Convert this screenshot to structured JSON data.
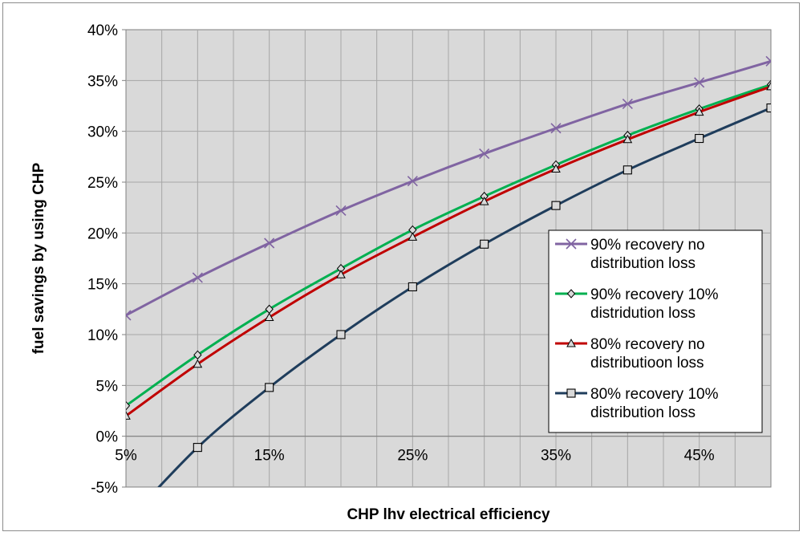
{
  "chart_data": {
    "type": "line",
    "xlabel": "CHP lhv electrical efficiency",
    "ylabel": "fuel savings by using CHP",
    "x_ticks": [
      "5%",
      "15%",
      "25%",
      "35%",
      "45%"
    ],
    "y_ticks": [
      "-5%",
      "0%",
      "5%",
      "10%",
      "15%",
      "20%",
      "25%",
      "30%",
      "35%",
      "40%"
    ],
    "xlim": [
      0.05,
      0.5
    ],
    "ylim": [
      -0.05,
      0.4
    ],
    "x": [
      0.05,
      0.1,
      0.15,
      0.2,
      0.25,
      0.3,
      0.35,
      0.4,
      0.45,
      0.5
    ],
    "grid": true,
    "legend_position": "right",
    "series": [
      {
        "name": "90% recovery no distribution loss",
        "legend_lines": [
          "90% recovery no",
          "distribution loss"
        ],
        "color": "#8064a2",
        "marker": "x",
        "values": [
          0.119,
          0.156,
          0.19,
          0.222,
          0.251,
          0.278,
          0.303,
          0.327,
          0.348,
          0.369
        ]
      },
      {
        "name": "90% recovery 10% distridution loss",
        "legend_lines": [
          "90% recovery 10%",
          "distridution loss"
        ],
        "color": "#00b050",
        "marker": "diamond",
        "values": [
          0.03,
          0.08,
          0.125,
          0.165,
          0.203,
          0.236,
          0.267,
          0.296,
          0.322,
          0.346
        ]
      },
      {
        "name": "80% recovery no distributioon loss",
        "legend_lines": [
          "80% recovery no",
          "distributioon loss"
        ],
        "color": "#c00000",
        "marker": "triangle",
        "values": [
          0.02,
          0.071,
          0.117,
          0.159,
          0.196,
          0.231,
          0.263,
          0.292,
          0.319,
          0.344
        ]
      },
      {
        "name": "80% recovery 10% distribution loss",
        "legend_lines": [
          "80% recovery 10%",
          "distribution loss"
        ],
        "color": "#1f3d5c",
        "marker": "square",
        "values": [
          -0.085,
          -0.011,
          0.048,
          0.1,
          0.147,
          0.189,
          0.227,
          0.262,
          0.293,
          0.323
        ]
      }
    ]
  }
}
